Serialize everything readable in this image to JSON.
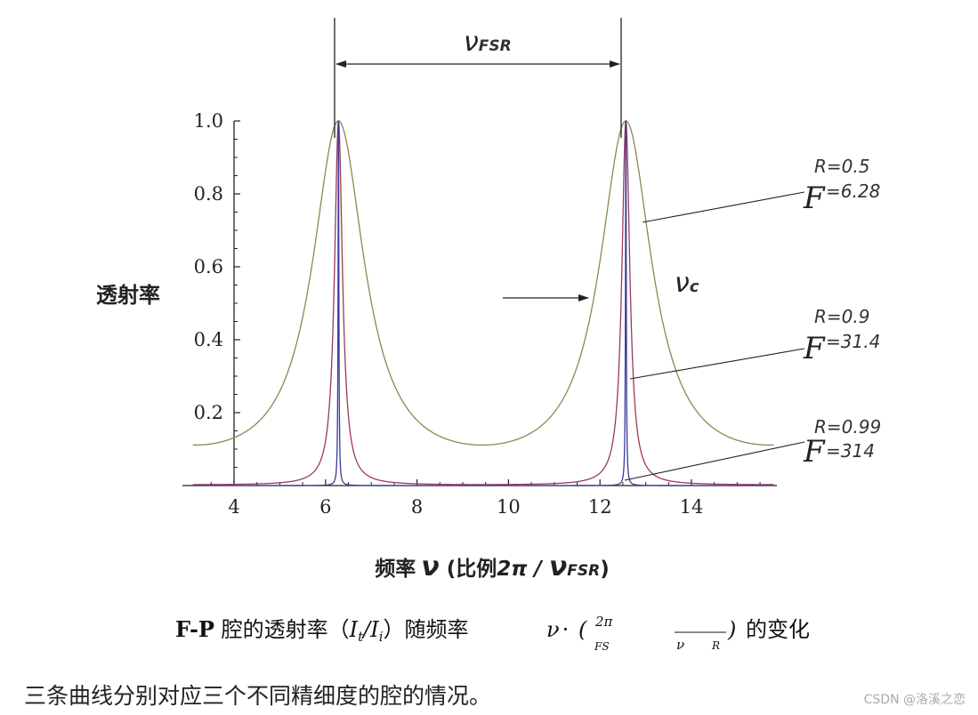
{
  "chart_data": {
    "type": "line",
    "title": "",
    "ylabel": "透射率",
    "xlabel": {
      "text": "频率",
      "nu": "ν",
      "open": " (比例",
      "two_pi": "2π",
      "slash": " / ",
      "nu_fsr_base": "ν",
      "nu_fsr_sub": "FSR",
      "close": ")"
    },
    "xlim": [
      3.1,
      15.8
    ],
    "ylim": [
      0,
      1.0
    ],
    "x_ticks": [
      "4",
      "6",
      "8",
      "10",
      "12",
      "14"
    ],
    "x_tick_values": [
      4,
      6,
      8,
      10,
      12,
      14
    ],
    "y_ticks": [
      "0.2",
      "0.4",
      "0.6",
      "0.8",
      "1.0"
    ],
    "y_tick_values": [
      0.2,
      0.4,
      0.6,
      0.8,
      1.0
    ],
    "peaks": [
      6.2832,
      12.5664
    ],
    "series": [
      {
        "R": 0.5,
        "finesse": 6.28,
        "color": "#8a8850"
      },
      {
        "R": 0.9,
        "finesse": 31.4,
        "color": "#9a3a5a"
      },
      {
        "R": 0.99,
        "finesse": 314,
        "color": "#3a3a9a"
      }
    ],
    "annotations": {
      "fsr_base": "ν",
      "fsr_sub": "FSR",
      "nu_c_base": "ν",
      "nu_c_sub": "c",
      "labels": [
        {
          "r_text": "R=0.5",
          "f_symbol": "F",
          "f_text": "=6.28"
        },
        {
          "r_text": "R=0.9",
          "f_symbol": "F",
          "f_text": "=31.4"
        },
        {
          "r_text": "R=0.99",
          "f_symbol": "F",
          "f_text": "=314"
        }
      ]
    }
  },
  "caption": {
    "fp": "F-P",
    "text1": " 腔的透射率（",
    "it": "I",
    "it_sub": "t",
    "slash": "/",
    "ii": "I",
    "ii_sub": "i",
    "text2": "）随频率",
    "nu": "ν",
    "cdot": "·",
    "paren_open": "(",
    "two_pi": "2π",
    "fs": "FS",
    "nu2": "ν",
    "r": "R",
    "paren_close": ")",
    "text3": "的变化"
  },
  "description": "三条曲线分别对应三个不同精细度的腔的情况。",
  "watermark": "CSDN @洛溪之恋"
}
